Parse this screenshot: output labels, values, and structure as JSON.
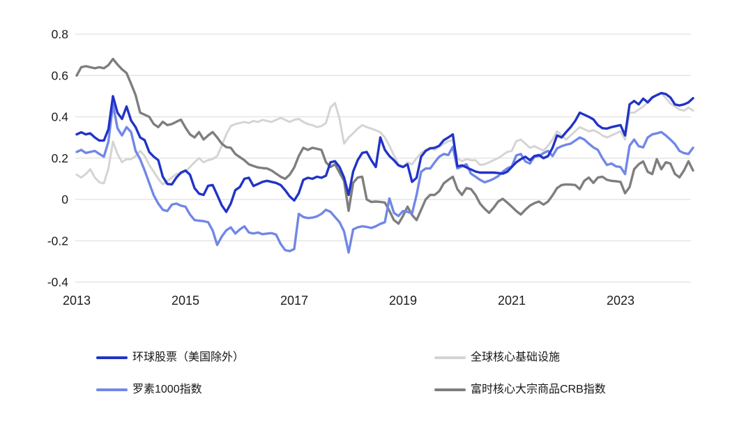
{
  "page": {
    "background_color": "#ffffff",
    "grid_color": "#e0e0e0",
    "axis_text_color": "#1c1c1c",
    "legend_text_color": "#161616"
  },
  "chart_data": {
    "type": "line",
    "title": "",
    "xlabel": "",
    "ylabel": "",
    "x_start": 2013.0,
    "x_step": 0.0833333,
    "x_end": 2024.3333,
    "ylim": [
      -0.4,
      0.8
    ],
    "yticks": [
      0.8,
      0.6,
      0.4,
      0.2,
      0,
      -0.2,
      -0.4
    ],
    "ytick_labels": [
      "0.8",
      "0.6",
      "0.4",
      "0.2",
      "0",
      "-0.2",
      "-0.4"
    ],
    "xticks": [
      2013,
      2015,
      2017,
      2019,
      2021,
      2023
    ],
    "xtick_labels": [
      "2013",
      "2015",
      "2017",
      "2019",
      "2021",
      "2023"
    ],
    "grid": "horizontal",
    "legend_position": "bottom-two-columns",
    "series": [
      {
        "name": "环球股票（美国除外）",
        "color": "#2133c6",
        "line_width": 3.4,
        "values": [
          0.315,
          0.325,
          0.315,
          0.32,
          0.3,
          0.285,
          0.285,
          0.34,
          0.5,
          0.42,
          0.39,
          0.45,
          0.382,
          0.35,
          0.3,
          0.287,
          0.23,
          0.207,
          0.19,
          0.11,
          0.075,
          0.073,
          0.106,
          0.13,
          0.14,
          0.12,
          0.055,
          0.028,
          0.022,
          0.066,
          0.07,
          0.022,
          -0.028,
          -0.06,
          -0.02,
          0.045,
          0.06,
          0.1,
          0.105,
          0.065,
          0.075,
          0.085,
          0.09,
          0.085,
          0.08,
          0.07,
          0.045,
          0.015,
          -0.005,
          0.03,
          0.095,
          0.105,
          0.1,
          0.11,
          0.105,
          0.115,
          0.18,
          0.185,
          0.157,
          0.106,
          0.022,
          0.135,
          0.19,
          0.225,
          0.23,
          0.19,
          0.157,
          0.3,
          0.24,
          0.21,
          0.19,
          0.165,
          0.157,
          0.17,
          0.085,
          0.105,
          0.207,
          0.235,
          0.247,
          0.25,
          0.26,
          0.287,
          0.3,
          0.315,
          0.16,
          0.165,
          0.155,
          0.145,
          0.135,
          0.13,
          0.13,
          0.13,
          0.13,
          0.128,
          0.125,
          0.134,
          0.157,
          0.18,
          0.195,
          0.207,
          0.19,
          0.21,
          0.215,
          0.2,
          0.21,
          0.25,
          0.31,
          0.3,
          0.326,
          0.35,
          0.38,
          0.42,
          0.41,
          0.4,
          0.388,
          0.36,
          0.345,
          0.343,
          0.35,
          0.355,
          0.36,
          0.31,
          0.46,
          0.477,
          0.46,
          0.488,
          0.47,
          0.494,
          0.505,
          0.515,
          0.51,
          0.494,
          0.46,
          0.455,
          0.46,
          0.47,
          0.49
        ]
      },
      {
        "name": "罗素1000指数",
        "color": "#7187e6",
        "line_width": 3.4,
        "values": [
          0.23,
          0.24,
          0.225,
          0.23,
          0.235,
          0.22,
          0.207,
          0.28,
          0.46,
          0.345,
          0.31,
          0.35,
          0.326,
          0.235,
          0.195,
          0.14,
          0.08,
          0.02,
          -0.02,
          -0.05,
          -0.056,
          -0.025,
          -0.02,
          -0.03,
          -0.035,
          -0.073,
          -0.1,
          -0.103,
          -0.105,
          -0.11,
          -0.15,
          -0.22,
          -0.18,
          -0.15,
          -0.135,
          -0.165,
          -0.145,
          -0.13,
          -0.16,
          -0.165,
          -0.16,
          -0.168,
          -0.165,
          -0.163,
          -0.17,
          -0.215,
          -0.245,
          -0.25,
          -0.24,
          -0.07,
          -0.085,
          -0.09,
          -0.088,
          -0.082,
          -0.07,
          -0.05,
          -0.06,
          -0.085,
          -0.11,
          -0.155,
          -0.257,
          -0.145,
          -0.135,
          -0.13,
          -0.133,
          -0.138,
          -0.13,
          -0.118,
          -0.11,
          0.005,
          -0.065,
          -0.08,
          -0.056,
          -0.06,
          -0.068,
          0.022,
          0.134,
          0.15,
          0.15,
          0.18,
          0.207,
          0.22,
          0.215,
          0.255,
          0.15,
          0.16,
          0.17,
          0.125,
          0.11,
          0.095,
          0.083,
          0.09,
          0.1,
          0.113,
          0.134,
          0.15,
          0.16,
          0.213,
          0.22,
          0.184,
          0.174,
          0.207,
          0.21,
          0.224,
          0.235,
          0.21,
          0.247,
          0.258,
          0.265,
          0.27,
          0.285,
          0.3,
          0.29,
          0.27,
          0.252,
          0.24,
          0.2,
          0.167,
          0.174,
          0.16,
          0.157,
          0.123,
          0.26,
          0.29,
          0.258,
          0.252,
          0.3,
          0.315,
          0.32,
          0.326,
          0.31,
          0.29,
          0.268,
          0.235,
          0.224,
          0.22,
          0.25
        ]
      },
      {
        "name": "全球核心基础设施",
        "color": "#d4d4d4",
        "line_width": 3.0,
        "values": [
          0.12,
          0.106,
          0.123,
          0.146,
          0.106,
          0.083,
          0.078,
          0.15,
          0.28,
          0.22,
          0.18,
          0.195,
          0.195,
          0.21,
          0.235,
          0.21,
          0.167,
          0.134,
          0.1,
          0.073,
          0.09,
          0.106,
          0.123,
          0.125,
          0.135,
          0.157,
          0.18,
          0.2,
          0.18,
          0.19,
          0.195,
          0.21,
          0.26,
          0.315,
          0.355,
          0.365,
          0.37,
          0.375,
          0.37,
          0.38,
          0.375,
          0.385,
          0.38,
          0.375,
          0.385,
          0.395,
          0.385,
          0.375,
          0.385,
          0.39,
          0.375,
          0.365,
          0.36,
          0.35,
          0.355,
          0.37,
          0.445,
          0.467,
          0.39,
          0.27,
          0.3,
          0.32,
          0.343,
          0.36,
          0.35,
          0.343,
          0.335,
          0.325,
          0.3,
          0.26,
          0.214,
          0.17,
          0.157,
          0.18,
          0.17,
          0.2,
          0.225,
          0.24,
          0.252,
          0.24,
          0.255,
          0.27,
          0.282,
          0.287,
          0.2,
          0.185,
          0.195,
          0.19,
          0.19,
          0.167,
          0.17,
          0.18,
          0.19,
          0.2,
          0.215,
          0.23,
          0.235,
          0.282,
          0.29,
          0.27,
          0.25,
          0.258,
          0.247,
          0.237,
          0.26,
          0.29,
          0.33,
          0.31,
          0.29,
          0.31,
          0.33,
          0.35,
          0.34,
          0.33,
          0.335,
          0.325,
          0.31,
          0.3,
          0.31,
          0.32,
          0.33,
          0.29,
          0.42,
          0.42,
          0.435,
          0.45,
          0.47,
          0.49,
          0.505,
          0.515,
          0.49,
          0.465,
          0.45,
          0.435,
          0.43,
          0.445,
          0.43
        ]
      },
      {
        "name": "富时核心大宗商品CRB指数",
        "color": "#7e7e7e",
        "line_width": 3.4,
        "values": [
          0.6,
          0.64,
          0.645,
          0.64,
          0.635,
          0.64,
          0.635,
          0.65,
          0.68,
          0.653,
          0.63,
          0.612,
          0.56,
          0.505,
          0.42,
          0.41,
          0.4,
          0.365,
          0.35,
          0.376,
          0.36,
          0.365,
          0.376,
          0.386,
          0.348,
          0.315,
          0.3,
          0.326,
          0.29,
          0.31,
          0.326,
          0.3,
          0.27,
          0.253,
          0.25,
          0.22,
          0.205,
          0.19,
          0.17,
          0.162,
          0.155,
          0.152,
          0.15,
          0.14,
          0.125,
          0.11,
          0.1,
          0.12,
          0.155,
          0.21,
          0.25,
          0.24,
          0.25,
          0.245,
          0.24,
          0.18,
          0.157,
          0.17,
          0.13,
          0.09,
          -0.055,
          0.08,
          0.106,
          0.11,
          0.0,
          -0.012,
          -0.01,
          -0.012,
          -0.015,
          -0.055,
          -0.1,
          -0.117,
          -0.08,
          -0.035,
          -0.075,
          -0.1,
          -0.05,
          0.0,
          0.022,
          0.022,
          0.04,
          0.078,
          0.095,
          0.11,
          0.05,
          0.022,
          0.055,
          0.05,
          0.022,
          -0.02,
          -0.045,
          -0.065,
          -0.04,
          -0.01,
          0.003,
          -0.015,
          -0.035,
          -0.056,
          -0.073,
          -0.05,
          -0.03,
          -0.018,
          -0.01,
          -0.025,
          -0.01,
          0.02,
          0.055,
          0.07,
          0.073,
          0.072,
          0.07,
          0.05,
          0.09,
          0.106,
          0.08,
          0.106,
          0.11,
          0.095,
          0.09,
          0.088,
          0.085,
          0.03,
          0.06,
          0.146,
          0.17,
          0.184,
          0.134,
          0.123,
          0.195,
          0.146,
          0.18,
          0.174,
          0.124,
          0.107,
          0.14,
          0.185,
          0.14
        ]
      }
    ]
  }
}
